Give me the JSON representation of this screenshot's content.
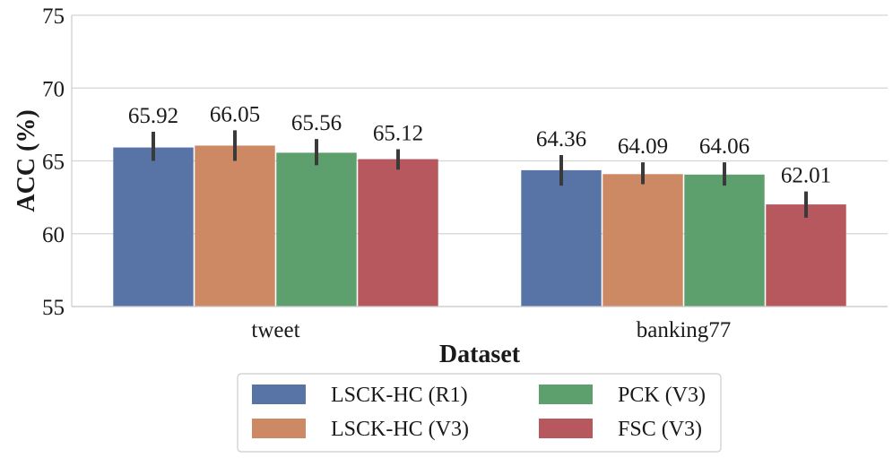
{
  "chart_data": {
    "type": "bar",
    "title": "",
    "xlabel": "Dataset",
    "ylabel": "ACC (%)",
    "ylim": [
      55,
      75
    ],
    "yticks": [
      55,
      60,
      65,
      70,
      75
    ],
    "grid": "horizontal",
    "legend_position": "bottom-center",
    "categories": [
      "tweet",
      "banking77"
    ],
    "series": [
      {
        "name": "LSCK-HC (R1)",
        "color": "#5874a6",
        "values": [
          65.92,
          64.36
        ],
        "value_labels": [
          "65.92",
          "64.36"
        ],
        "error_low": [
          65.0,
          63.3
        ],
        "error_high": [
          67.0,
          65.4
        ]
      },
      {
        "name": "LSCK-HC (V3)",
        "color": "#cd8963",
        "values": [
          66.05,
          64.09
        ],
        "value_labels": [
          "66.05",
          "64.09"
        ],
        "error_low": [
          65.0,
          63.4
        ],
        "error_high": [
          67.1,
          64.9
        ]
      },
      {
        "name": "PCK (V3)",
        "color": "#5e9f6e",
        "values": [
          65.56,
          64.06
        ],
        "value_labels": [
          "65.56",
          "64.06"
        ],
        "error_low": [
          64.7,
          63.3
        ],
        "error_high": [
          66.5,
          64.9
        ]
      },
      {
        "name": "FSC (V3)",
        "color": "#b6585e",
        "values": [
          65.12,
          62.01
        ],
        "value_labels": [
          "65.12",
          "62.01"
        ],
        "error_low": [
          64.4,
          61.1
        ],
        "error_high": [
          65.8,
          62.9
        ]
      }
    ]
  }
}
